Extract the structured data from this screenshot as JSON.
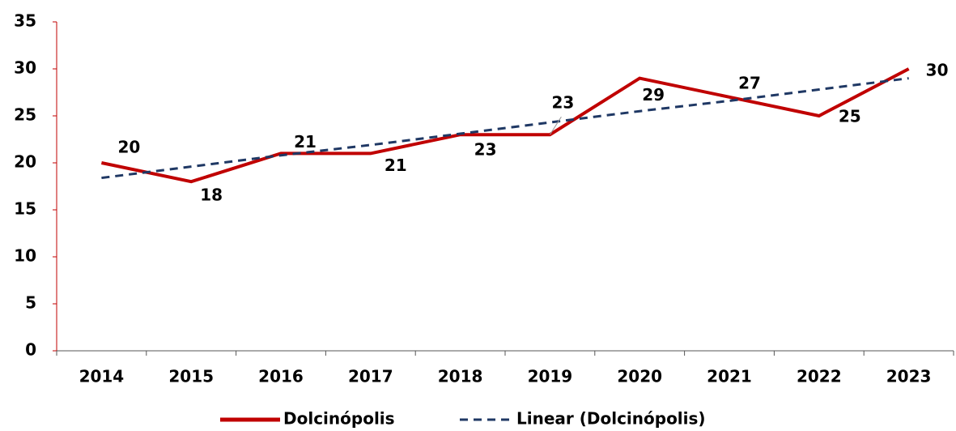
{
  "chart_data": {
    "type": "line",
    "categories": [
      "2014",
      "2015",
      "2016",
      "2017",
      "2018",
      "2019",
      "2020",
      "2021",
      "2022",
      "2023"
    ],
    "series": [
      {
        "name": "Dolcinópolis",
        "color": "#c00000",
        "values": [
          20,
          18,
          21,
          21,
          23,
          23,
          29,
          27,
          25,
          30
        ]
      },
      {
        "name": "Linear (Dolcinópolis)",
        "color": "#1f3864",
        "dashed": true,
        "values": [
          18.4,
          19.6,
          20.8,
          21.9,
          23.1,
          24.3,
          25.5,
          26.6,
          27.8,
          29.0
        ]
      }
    ],
    "ylim": [
      0,
      35
    ],
    "yticks": [
      0,
      5,
      10,
      15,
      20,
      25,
      30,
      35
    ],
    "data_labels": true,
    "legend": "bottom"
  }
}
